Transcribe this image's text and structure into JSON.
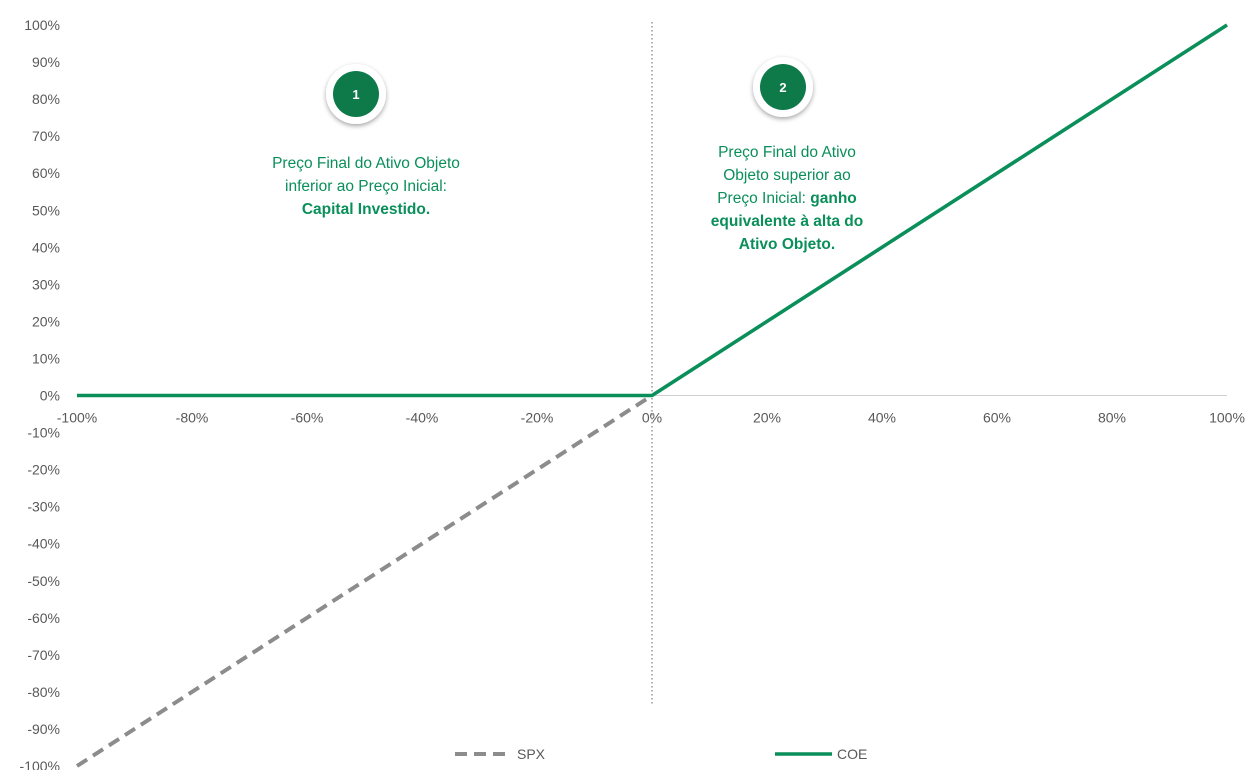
{
  "chart_data": {
    "type": "line",
    "title": "",
    "xlabel": "",
    "ylabel": "",
    "xlim": [
      -1,
      1
    ],
    "ylim": [
      -1,
      1
    ],
    "x_ticks": [
      -1,
      -0.8,
      -0.6,
      -0.4,
      -0.2,
      0,
      0.2,
      0.4,
      0.6,
      0.8,
      1
    ],
    "x_tick_labels": [
      "-100%",
      "-80%",
      "-60%",
      "-40%",
      "-20%",
      "0%",
      "20%",
      "40%",
      "60%",
      "80%",
      "100%"
    ],
    "y_ticks": [
      1,
      0.9,
      0.8,
      0.7,
      0.6,
      0.5,
      0.4,
      0.3,
      0.2,
      0.1,
      0,
      -0.1,
      -0.2,
      -0.3,
      -0.4,
      -0.5,
      -0.6,
      -0.7,
      -0.8,
      -0.9,
      -1
    ],
    "y_tick_labels": [
      "100%",
      "90%",
      "80%",
      "70%",
      "60%",
      "50%",
      "40%",
      "30%",
      "20%",
      "10%",
      "0%",
      "-10%",
      "-20%",
      "-30%",
      "-40%",
      "-50%",
      "-60%",
      "-70%",
      "-80%",
      "-90%",
      "-100%"
    ],
    "grid": false,
    "legend_position": "bottom",
    "vertical_reference_line_x": 0,
    "series": [
      {
        "name": "SPX",
        "style": "dashed",
        "color": "#8c8c8c",
        "points": [
          [
            -1,
            -1
          ],
          [
            0,
            0
          ]
        ]
      },
      {
        "name": "COE",
        "style": "solid",
        "color": "#0a8f5a",
        "points": [
          [
            -1,
            0
          ],
          [
            0,
            0
          ],
          [
            1,
            1
          ]
        ]
      }
    ],
    "annotations": [
      {
        "badge": "1",
        "lines": [
          [
            {
              "text": "Preço Final do Ativo Objeto",
              "bold": false
            }
          ],
          [
            {
              "text": "inferior ao Preço Inicial:",
              "bold": false
            }
          ],
          [
            {
              "text": "Capital Investido.",
              "bold": true
            }
          ]
        ]
      },
      {
        "badge": "2",
        "lines": [
          [
            {
              "text": "Preço Final do Ativo",
              "bold": false
            }
          ],
          [
            {
              "text": "Objeto superior ao",
              "bold": false
            }
          ],
          [
            {
              "text": "Preço Inicial: ",
              "bold": false
            },
            {
              "text": "ganho",
              "bold": true
            }
          ],
          [
            {
              "text": "equivalente à alta do",
              "bold": true
            }
          ],
          [
            {
              "text": "Ativo Objeto.",
              "bold": true
            }
          ]
        ]
      }
    ]
  },
  "colors": {
    "accent": "#0a8f5a",
    "badge_fill": "#0e7a4a",
    "spx_gray": "#8c8c8c",
    "axis_gray": "#d0d0d0",
    "tick_text": "#595959"
  }
}
